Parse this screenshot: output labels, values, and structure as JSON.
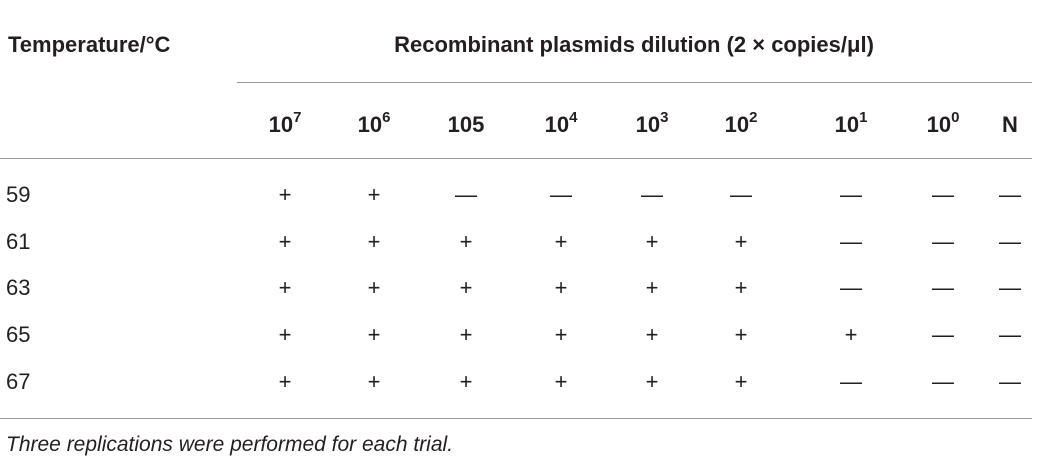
{
  "header": {
    "first": "Temperature/°C",
    "group": "Recombinant plasmids dilution (2 × copies/μl)",
    "columns": [
      {
        "base": "10",
        "exp": "7"
      },
      {
        "base": "10",
        "exp": "6"
      },
      "105",
      {
        "base": "10",
        "exp": "4"
      },
      {
        "base": "10",
        "exp": "3"
      },
      {
        "base": "10",
        "exp": "2"
      },
      {
        "base": "10",
        "exp": "1"
      },
      {
        "base": "10",
        "exp": "0"
      },
      "N"
    ]
  },
  "rows": [
    [
      "59",
      "+",
      "+",
      "—",
      "—",
      "—",
      "—",
      "—",
      "—",
      "—"
    ],
    [
      "61",
      "+",
      "+",
      "+",
      "+",
      "+",
      "+",
      "—",
      "—",
      "—"
    ],
    [
      "63",
      "+",
      "+",
      "+",
      "+",
      "+",
      "+",
      "—",
      "—",
      "—"
    ],
    [
      "65",
      "+",
      "+",
      "+",
      "+",
      "+",
      "+",
      "+",
      "—",
      "—"
    ],
    [
      "67",
      "+",
      "+",
      "+",
      "+",
      "+",
      "+",
      "—",
      "—",
      "—"
    ]
  ],
  "footnote": "Three replications were performed for each trial."
}
